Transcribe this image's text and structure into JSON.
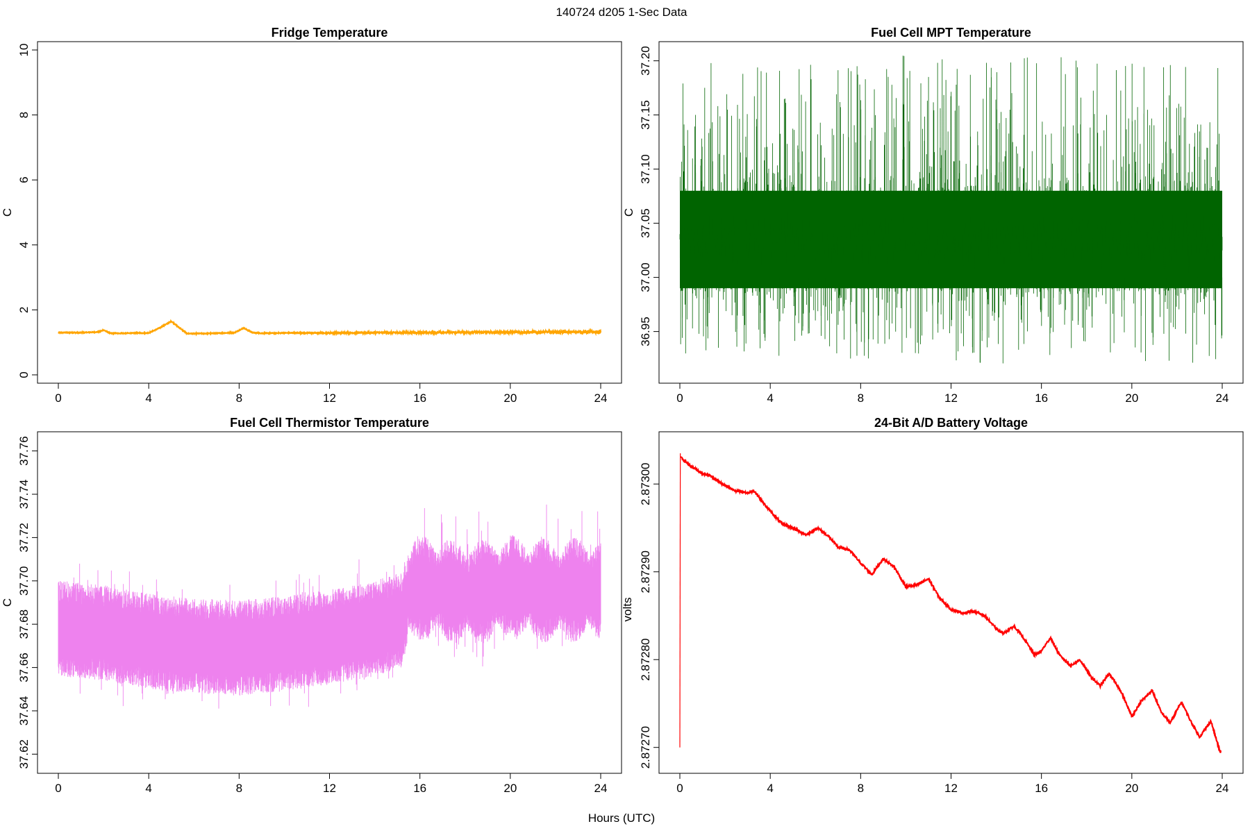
{
  "figure": {
    "title": "140724   d205   1-Sec Data",
    "xlabel": "Hours (UTC)"
  },
  "chart_data": [
    {
      "type": "line",
      "title": "Fridge Temperature",
      "xlabel": "Hours (UTC)",
      "ylabel": "C",
      "xlim": [
        0,
        24
      ],
      "ylim": [
        0,
        10
      ],
      "xticks": [
        "0",
        "4",
        "8",
        "12",
        "16",
        "20",
        "24"
      ],
      "yticks": [
        "0",
        "2",
        "4",
        "6",
        "8",
        "10"
      ],
      "color": "#FFA500",
      "series": [
        {
          "name": "Fridge Temperature",
          "x": [
            0,
            1,
            1.8,
            2.0,
            2.3,
            3,
            4,
            4.5,
            5.0,
            5.3,
            5.7,
            6,
            7,
            7.8,
            8.2,
            8.6,
            9,
            10,
            12,
            14,
            16,
            18,
            20,
            22,
            24
          ],
          "y": [
            1.3,
            1.3,
            1.32,
            1.38,
            1.28,
            1.28,
            1.29,
            1.45,
            1.65,
            1.48,
            1.27,
            1.27,
            1.28,
            1.3,
            1.44,
            1.3,
            1.28,
            1.29,
            1.29,
            1.3,
            1.3,
            1.31,
            1.31,
            1.32,
            1.32
          ],
          "noise": [
            0.02,
            0.08
          ]
        }
      ]
    },
    {
      "type": "line",
      "title": "Fuel Cell MPT Temperature",
      "xlabel": "Hours (UTC)",
      "ylabel": "C",
      "xlim": [
        0,
        24
      ],
      "ylim": [
        36.91,
        37.21
      ],
      "xticks": [
        "0",
        "4",
        "8",
        "12",
        "16",
        "20",
        "24"
      ],
      "yticks": [
        "36.95",
        "37.00",
        "37.05",
        "37.10",
        "37.15",
        "37.20"
      ],
      "color": "#006400",
      "series": [
        {
          "name": "Fuel Cell MPT Temperature",
          "x": [
            0,
            24
          ],
          "y": [
            37.035,
            37.035
          ],
          "core_range": [
            36.99,
            37.08
          ],
          "extreme_range": [
            36.92,
            37.205
          ]
        }
      ]
    },
    {
      "type": "line",
      "title": "Fuel Cell Thermistor Temperature",
      "xlabel": "Hours (UTC)",
      "ylabel": "C",
      "xlim": [
        0,
        24
      ],
      "ylim": [
        37.615,
        37.765
      ],
      "xticks": [
        "0",
        "4",
        "8",
        "12",
        "16",
        "20",
        "24"
      ],
      "yticks": [
        "37.62",
        "37.64",
        "37.66",
        "37.68",
        "37.70",
        "37.72",
        "37.74",
        "37.76"
      ],
      "color": "#EE82EE",
      "series": [
        {
          "name": "Fuel Cell Thermistor Temperature",
          "x": [
            0,
            2,
            4,
            6,
            8,
            10,
            12,
            14,
            15.2,
            15.5,
            16,
            17,
            18,
            19,
            20,
            21,
            22,
            23,
            24
          ],
          "y": [
            37.678,
            37.676,
            37.672,
            37.67,
            37.669,
            37.671,
            37.674,
            37.678,
            37.682,
            37.695,
            37.697,
            37.696,
            37.694,
            37.695,
            37.697,
            37.696,
            37.695,
            37.696,
            37.695
          ],
          "half_spread": [
            0.022,
            0.04
          ]
        }
      ]
    },
    {
      "type": "line",
      "title": "24-Bit A/D Battery Voltage",
      "xlabel": "Hours (UTC)",
      "ylabel": "volts",
      "xlim": [
        0,
        24
      ],
      "ylim": [
        2.87268,
        2.87305
      ],
      "xticks": [
        "0",
        "4",
        "8",
        "12",
        "16",
        "20",
        "24"
      ],
      "yticks": [
        "2.87270",
        "2.87280",
        "2.87290",
        "2.87300"
      ],
      "color": "#FF0000",
      "series": [
        {
          "name": "24-Bit A/D Battery Voltage",
          "x": [
            0,
            0.02,
            0.05,
            0.5,
            1.0,
            1.3,
            2.0,
            2.5,
            3.0,
            3.3,
            3.8,
            4.5,
            5.0,
            5.6,
            6.1,
            6.6,
            7.0,
            7.5,
            8.0,
            8.5,
            9.0,
            9.5,
            10.0,
            10.5,
            11.0,
            11.5,
            12.0,
            12.5,
            13.0,
            13.5,
            14.0,
            14.3,
            14.8,
            15.2,
            15.7,
            16.0,
            16.4,
            16.8,
            17.3,
            17.7,
            18.2,
            18.6,
            19.0,
            19.5,
            20.0,
            20.4,
            20.9,
            21.3,
            21.7,
            22.2,
            22.6,
            23.0,
            23.5,
            23.9
          ],
          "y": [
            2.8727,
            2.873035,
            2.87303,
            2.87302,
            2.873012,
            2.87301,
            2.872998,
            2.872992,
            2.87299,
            2.872992,
            2.872975,
            2.872955,
            2.87295,
            2.872942,
            2.87295,
            2.87294,
            2.872928,
            2.872925,
            2.87291,
            2.872897,
            2.872915,
            2.872905,
            2.872883,
            2.872885,
            2.872892,
            2.87287,
            2.872857,
            2.872853,
            2.872855,
            2.87285,
            2.872835,
            2.87283,
            2.872838,
            2.872825,
            2.872805,
            2.87281,
            2.872825,
            2.872805,
            2.872793,
            2.8728,
            2.87278,
            2.87277,
            2.872784,
            2.872765,
            2.872735,
            2.872752,
            2.872765,
            2.87274,
            2.872728,
            2.872752,
            2.87273,
            2.872712,
            2.87273,
            2.872695
          ]
        }
      ]
    }
  ]
}
